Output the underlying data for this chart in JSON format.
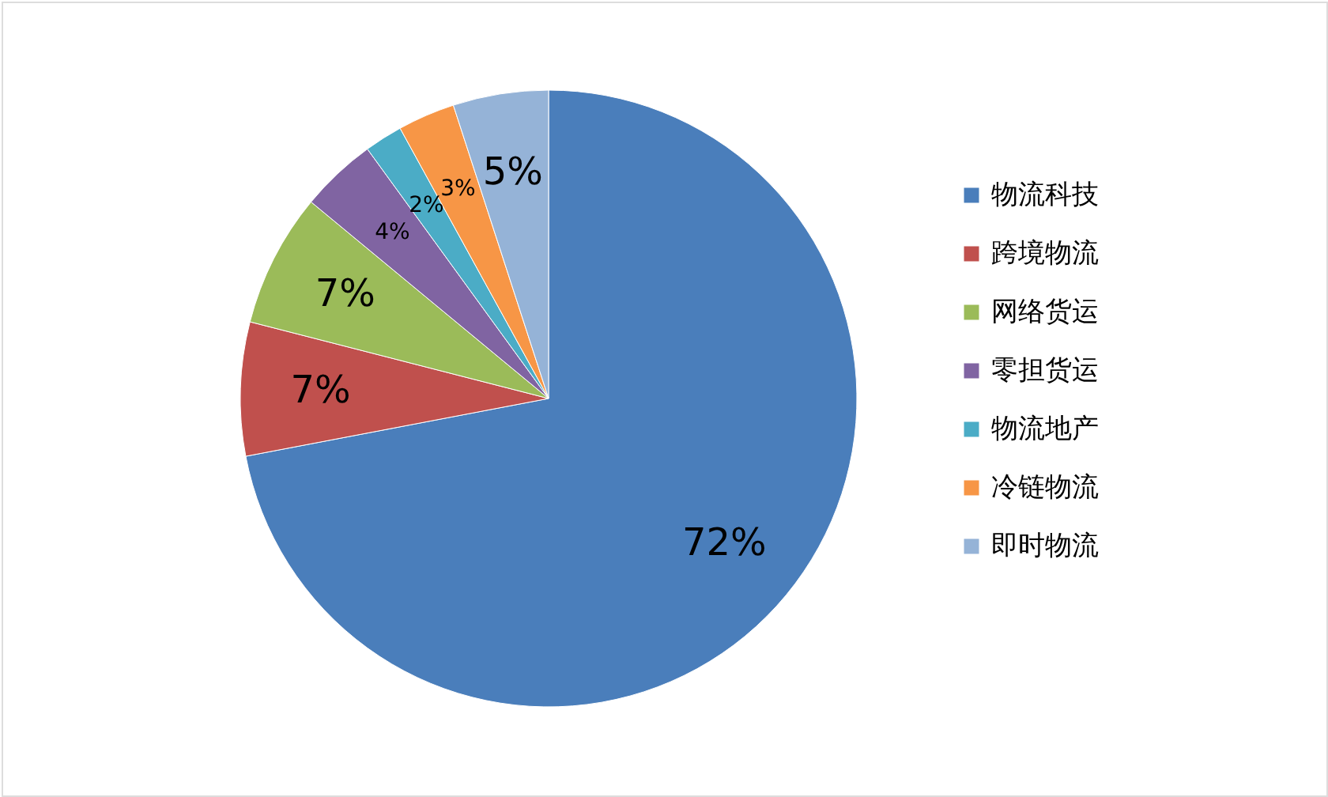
{
  "chart_data": {
    "type": "pie",
    "categories": [
      "物流科技",
      "跨境物流",
      "网络货运",
      "零担货运",
      "物流地产",
      "冷链物流",
      "即时物流"
    ],
    "values": [
      72,
      7,
      7,
      4,
      2,
      3,
      5
    ],
    "colors": [
      "#4a7ebb",
      "#c0504d",
      "#9bbb59",
      "#8064a2",
      "#4bacc6",
      "#f79646",
      "#95b3d7"
    ],
    "value_labels": [
      "72%",
      "7%",
      "7%",
      "4%",
      "2%",
      "3%",
      "5%"
    ],
    "legend": "right"
  }
}
